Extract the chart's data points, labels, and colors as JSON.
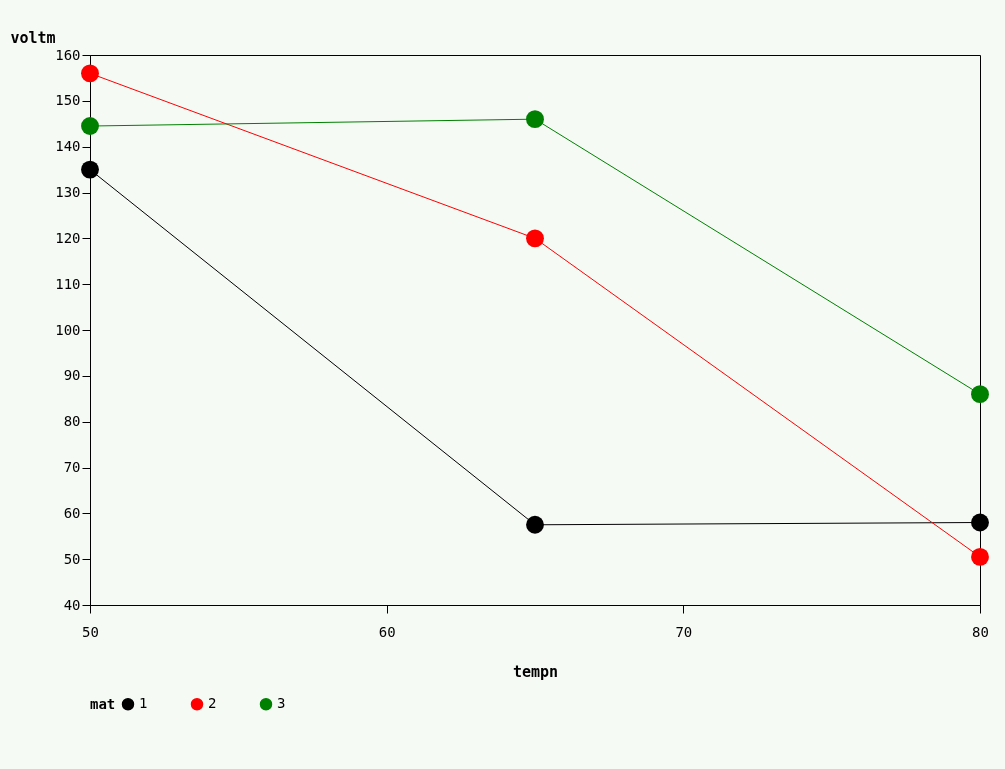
{
  "chart_data": {
    "type": "line",
    "xlabel": "tempn",
    "ylabel": "voltm",
    "legend_title": "mat",
    "x": [
      50,
      65,
      80
    ],
    "series": [
      {
        "name": "1",
        "color": "#000000",
        "values": [
          135,
          57.5,
          58
        ]
      },
      {
        "name": "2",
        "color": "#ff0000",
        "values": [
          156,
          120,
          50.5
        ]
      },
      {
        "name": "3",
        "color": "#008000",
        "values": [
          144.5,
          146,
          86
        ]
      }
    ],
    "xlim": [
      50,
      80
    ],
    "xticks": [
      50,
      60,
      70,
      80
    ],
    "ylim": [
      40,
      160
    ],
    "yticks": [
      40,
      50,
      60,
      70,
      80,
      90,
      100,
      110,
      120,
      130,
      140,
      150,
      160
    ],
    "marker": "circle",
    "line_style": "solid",
    "legend": "bottom",
    "grid": false
  }
}
